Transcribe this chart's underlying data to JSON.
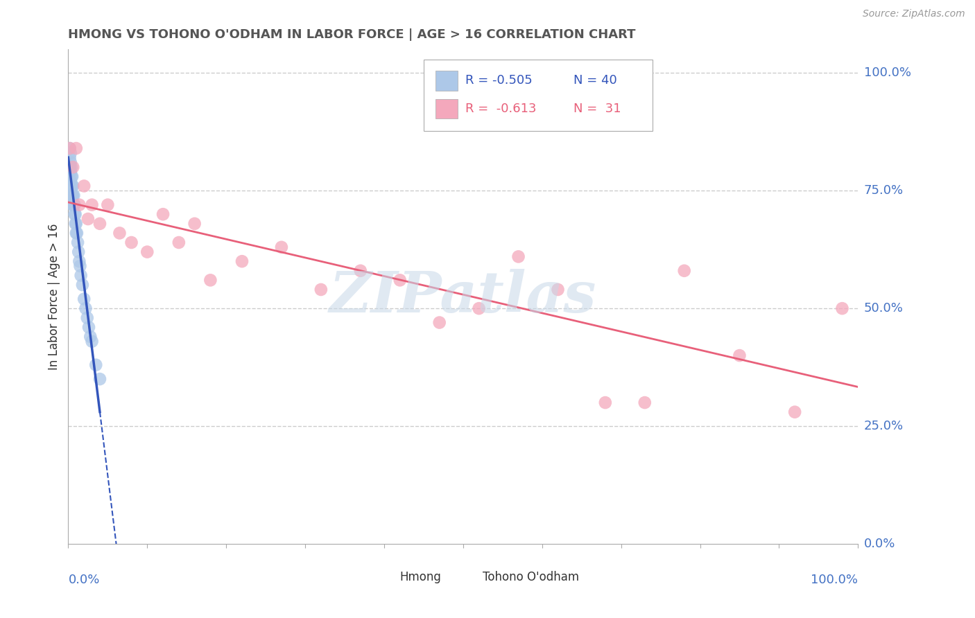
{
  "title": "HMONG VS TOHONO O'ODHAM IN LABOR FORCE | AGE > 16 CORRELATION CHART",
  "source_text": "Source: ZipAtlas.com",
  "xlabel_bottom_left": "0.0%",
  "xlabel_bottom_right": "100.0%",
  "ylabel_left": "In Labor Force | Age > 16",
  "ylabel_right_ticks": [
    "100.0%",
    "75.0%",
    "50.0%",
    "25.0%",
    "0.0%"
  ],
  "ylabel_right_vals": [
    1.0,
    0.75,
    0.5,
    0.25,
    0.0
  ],
  "legend_hmong_R": "-0.505",
  "legend_hmong_N": "40",
  "legend_tohono_R": "-0.613",
  "legend_tohono_N": "31",
  "legend_label_hmong": "Hmong",
  "legend_label_tohono": "Tohono O'odham",
  "hmong_color": "#adc8e8",
  "tohono_color": "#f4a8bc",
  "hmong_line_color": "#3355bb",
  "tohono_line_color": "#e8607a",
  "watermark_color": "#c8d8e8",
  "watermark_text": "ZIPatlas",
  "background_color": "#ffffff",
  "grid_color": "#cccccc",
  "title_color": "#555555",
  "tick_label_color": "#4472c4",
  "note_color": "#999999",
  "hmong_x": [
    0.002,
    0.002,
    0.002,
    0.003,
    0.003,
    0.003,
    0.003,
    0.004,
    0.004,
    0.004,
    0.005,
    0.005,
    0.005,
    0.005,
    0.006,
    0.006,
    0.006,
    0.007,
    0.007,
    0.008,
    0.008,
    0.009,
    0.009,
    0.01,
    0.01,
    0.011,
    0.012,
    0.013,
    0.014,
    0.015,
    0.016,
    0.018,
    0.02,
    0.022,
    0.024,
    0.026,
    0.028,
    0.03,
    0.035,
    0.04
  ],
  "hmong_y": [
    0.84,
    0.82,
    0.8,
    0.83,
    0.81,
    0.79,
    0.77,
    0.8,
    0.78,
    0.76,
    0.78,
    0.76,
    0.74,
    0.72,
    0.76,
    0.74,
    0.72,
    0.74,
    0.72,
    0.72,
    0.7,
    0.7,
    0.68,
    0.68,
    0.66,
    0.66,
    0.64,
    0.62,
    0.6,
    0.59,
    0.57,
    0.55,
    0.52,
    0.5,
    0.48,
    0.46,
    0.44,
    0.43,
    0.38,
    0.35
  ],
  "tohono_x": [
    0.002,
    0.006,
    0.01,
    0.014,
    0.02,
    0.025,
    0.03,
    0.04,
    0.05,
    0.065,
    0.08,
    0.1,
    0.12,
    0.14,
    0.16,
    0.18,
    0.22,
    0.27,
    0.32,
    0.37,
    0.42,
    0.47,
    0.52,
    0.57,
    0.62,
    0.68,
    0.73,
    0.78,
    0.85,
    0.92,
    0.98
  ],
  "tohono_y": [
    0.84,
    0.8,
    0.84,
    0.72,
    0.76,
    0.69,
    0.72,
    0.68,
    0.72,
    0.66,
    0.64,
    0.62,
    0.7,
    0.64,
    0.68,
    0.56,
    0.6,
    0.63,
    0.54,
    0.58,
    0.56,
    0.47,
    0.5,
    0.61,
    0.54,
    0.3,
    0.3,
    0.58,
    0.4,
    0.28,
    0.5
  ],
  "xlim": [
    0.0,
    1.0
  ],
  "ylim": [
    0.0,
    1.05
  ]
}
